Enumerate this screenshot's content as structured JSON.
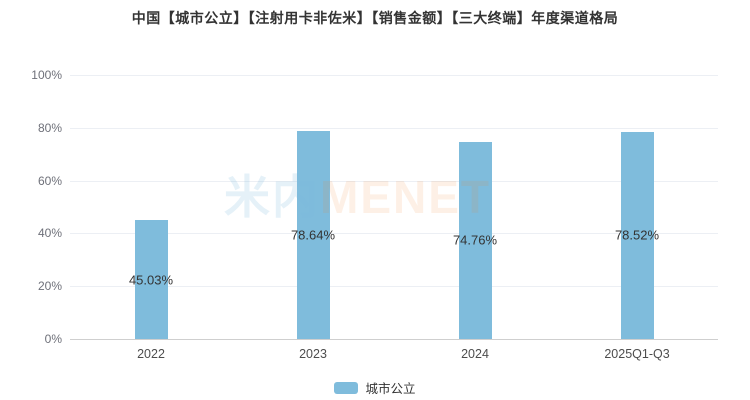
{
  "title": "中国【城市公立】【注射用卡非佐米】【销售金额】【三大终端】年度渠道格局",
  "watermark": {
    "cn": "米内",
    "en": "MENET"
  },
  "legend": {
    "label": "城市公立"
  },
  "colors": {
    "bar": "#7FBCDC",
    "title_text": "#333333",
    "axis_label": "#6E7079",
    "gridline": "#ECEFF4",
    "axis_line": "#CFCFCF",
    "value_label": "#333333",
    "watermark_cn": "rgba(126,184,218,0.20)",
    "watermark_en": "rgba(240,128,48,0.12)"
  },
  "chart_data": {
    "type": "bar",
    "title": "中国【城市公立】【注射用卡非佐米】【销售金额】【三大终端】年度渠道格局",
    "categories": [
      "2022",
      "2023",
      "2024",
      "2025Q1-Q3"
    ],
    "series": [
      {
        "name": "城市公立",
        "values": [
          45.03,
          78.64,
          74.76,
          78.52
        ],
        "labels": [
          "45.03%",
          "78.64%",
          "74.76%",
          "78.52%"
        ],
        "color": "#7FBCDC"
      }
    ],
    "xlabel": "",
    "ylabel": "",
    "ylim": [
      0,
      100
    ],
    "yticks": [
      "0%",
      "20%",
      "40%",
      "60%",
      "80%",
      "100%"
    ],
    "ytick_values": [
      0,
      20,
      40,
      60,
      80,
      100
    ],
    "grid": true,
    "value_label_position": "inside-middle",
    "legend_position": "bottom"
  }
}
